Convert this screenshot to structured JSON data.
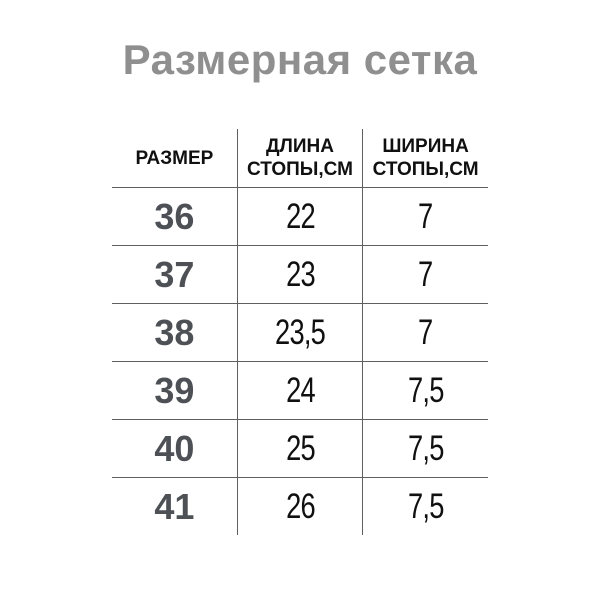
{
  "title": "Размерная сетка",
  "table": {
    "headers": {
      "size": "РАЗМЕР",
      "length_line1": "ДЛИНА",
      "length_line2": "СТОПЫ,СМ",
      "width_line1": "ШИРИНА",
      "width_line2": "СТОПЫ,СМ"
    },
    "rows": [
      {
        "size": "36",
        "length": "22",
        "width": "7"
      },
      {
        "size": "37",
        "length": "23",
        "width": "7"
      },
      {
        "size": "38",
        "length": "23,5",
        "width": "7"
      },
      {
        "size": "39",
        "length": "24",
        "width": "7,5"
      },
      {
        "size": "40",
        "length": "25",
        "width": "7,5"
      },
      {
        "size": "41",
        "length": "26",
        "width": "7,5"
      }
    ]
  },
  "colors": {
    "title_gray": "#8f8f8f",
    "size_number_gray": "#4d5156",
    "text_black": "#101010",
    "grid_line": "#5f5f5f",
    "background": "#ffffff"
  },
  "chart_data": {
    "type": "table",
    "title": "Размерная сетка",
    "columns": [
      "РАЗМЕР",
      "ДЛИНА СТОПЫ,СМ",
      "ШИРИНА СТОПЫ,СМ"
    ],
    "rows": [
      [
        "36",
        "22",
        "7"
      ],
      [
        "37",
        "23",
        "7"
      ],
      [
        "38",
        "23,5",
        "7"
      ],
      [
        "39",
        "24",
        "7,5"
      ],
      [
        "40",
        "25",
        "7,5"
      ],
      [
        "41",
        "26",
        "7,5"
      ]
    ]
  }
}
